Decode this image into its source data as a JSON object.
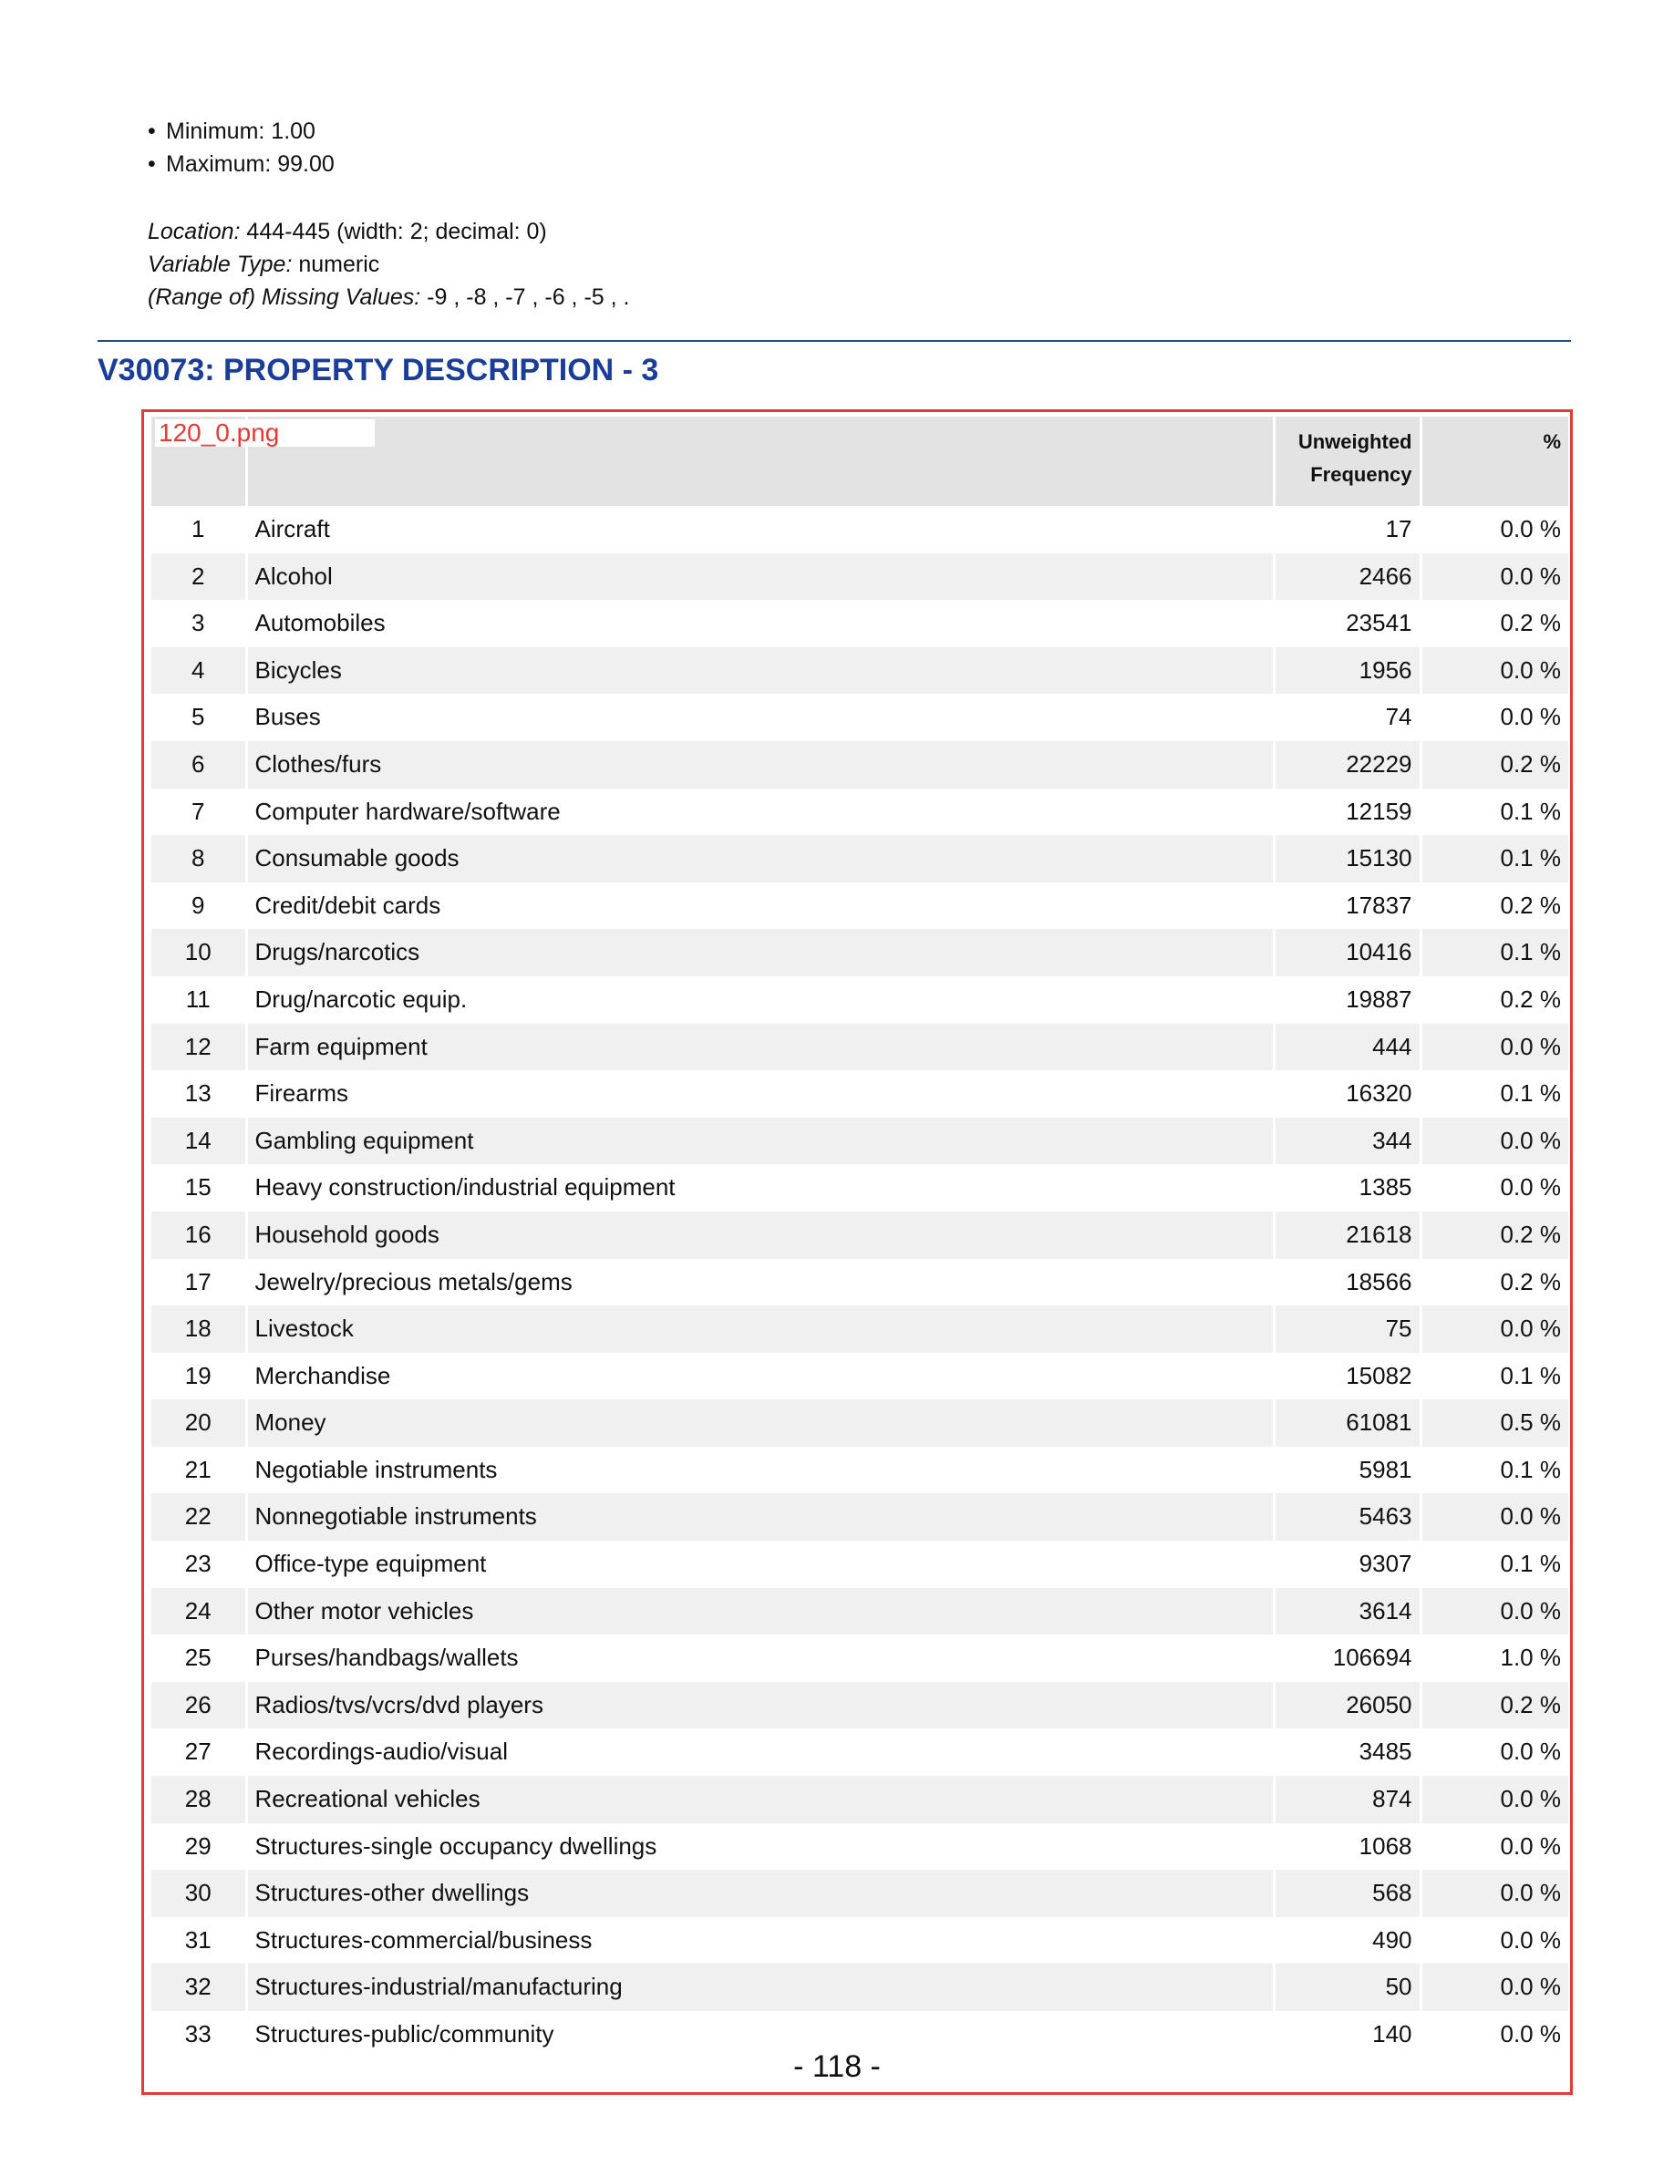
{
  "stats": [
    {
      "label": "Minimum:",
      "value": "1.00"
    },
    {
      "label": "Maximum:",
      "value": "99.00"
    }
  ],
  "meta": {
    "location_label": "Location:",
    "location_value": "444-445 (width: 2; decimal: 0)",
    "type_label": "Variable Type:",
    "type_value": "numeric",
    "missing_label": "(Range of) Missing Values:",
    "missing_value": "-9 , -8 , -7 , -6 , -5 , ."
  },
  "variable_title": "V30073: PROPERTY DESCRIPTION - 3",
  "image_label": "120_0.png",
  "table": {
    "headers": {
      "code": "",
      "label": "",
      "freq_line1": "Unweighted",
      "freq_line2": "Frequency",
      "pct": "%"
    },
    "rows": [
      {
        "code": "1",
        "label": "Aircraft",
        "freq": "17",
        "pct": "0.0 %"
      },
      {
        "code": "2",
        "label": "Alcohol",
        "freq": "2466",
        "pct": "0.0 %"
      },
      {
        "code": "3",
        "label": "Automobiles",
        "freq": "23541",
        "pct": "0.2 %"
      },
      {
        "code": "4",
        "label": "Bicycles",
        "freq": "1956",
        "pct": "0.0 %"
      },
      {
        "code": "5",
        "label": "Buses",
        "freq": "74",
        "pct": "0.0 %"
      },
      {
        "code": "6",
        "label": "Clothes/furs",
        "freq": "22229",
        "pct": "0.2 %"
      },
      {
        "code": "7",
        "label": "Computer hardware/software",
        "freq": "12159",
        "pct": "0.1 %"
      },
      {
        "code": "8",
        "label": "Consumable goods",
        "freq": "15130",
        "pct": "0.1 %"
      },
      {
        "code": "9",
        "label": "Credit/debit cards",
        "freq": "17837",
        "pct": "0.2 %"
      },
      {
        "code": "10",
        "label": "Drugs/narcotics",
        "freq": "10416",
        "pct": "0.1 %"
      },
      {
        "code": "11",
        "label": "Drug/narcotic equip.",
        "freq": "19887",
        "pct": "0.2 %"
      },
      {
        "code": "12",
        "label": "Farm equipment",
        "freq": "444",
        "pct": "0.0 %"
      },
      {
        "code": "13",
        "label": "Firearms",
        "freq": "16320",
        "pct": "0.1 %"
      },
      {
        "code": "14",
        "label": "Gambling equipment",
        "freq": "344",
        "pct": "0.0 %"
      },
      {
        "code": "15",
        "label": "Heavy construction/industrial equipment",
        "freq": "1385",
        "pct": "0.0 %"
      },
      {
        "code": "16",
        "label": "Household goods",
        "freq": "21618",
        "pct": "0.2 %"
      },
      {
        "code": "17",
        "label": "Jewelry/precious metals/gems",
        "freq": "18566",
        "pct": "0.2 %"
      },
      {
        "code": "18",
        "label": "Livestock",
        "freq": "75",
        "pct": "0.0 %"
      },
      {
        "code": "19",
        "label": "Merchandise",
        "freq": "15082",
        "pct": "0.1 %"
      },
      {
        "code": "20",
        "label": "Money",
        "freq": "61081",
        "pct": "0.5 %"
      },
      {
        "code": "21",
        "label": "Negotiable instruments",
        "freq": "5981",
        "pct": "0.1 %"
      },
      {
        "code": "22",
        "label": "Nonnegotiable instruments",
        "freq": "5463",
        "pct": "0.0 %"
      },
      {
        "code": "23",
        "label": "Office-type equipment",
        "freq": "9307",
        "pct": "0.1 %"
      },
      {
        "code": "24",
        "label": "Other motor vehicles",
        "freq": "3614",
        "pct": "0.0 %"
      },
      {
        "code": "25",
        "label": "Purses/handbags/wallets",
        "freq": "106694",
        "pct": "1.0 %"
      },
      {
        "code": "26",
        "label": "Radios/tvs/vcrs/dvd players",
        "freq": "26050",
        "pct": "0.2 %"
      },
      {
        "code": "27",
        "label": "Recordings-audio/visual",
        "freq": "3485",
        "pct": "0.0 %"
      },
      {
        "code": "28",
        "label": "Recreational vehicles",
        "freq": "874",
        "pct": "0.0 %"
      },
      {
        "code": "29",
        "label": "Structures-single occupancy dwellings",
        "freq": "1068",
        "pct": "0.0 %"
      },
      {
        "code": "30",
        "label": "Structures-other dwellings",
        "freq": "568",
        "pct": "0.0 %"
      },
      {
        "code": "31",
        "label": "Structures-commercial/business",
        "freq": "490",
        "pct": "0.0 %"
      },
      {
        "code": "32",
        "label": "Structures-industrial/manufacturing",
        "freq": "50",
        "pct": "0.0 %"
      },
      {
        "code": "33",
        "label": "Structures-public/community",
        "freq": "140",
        "pct": "0.0 %"
      }
    ]
  },
  "page_number": "- 118 -"
}
